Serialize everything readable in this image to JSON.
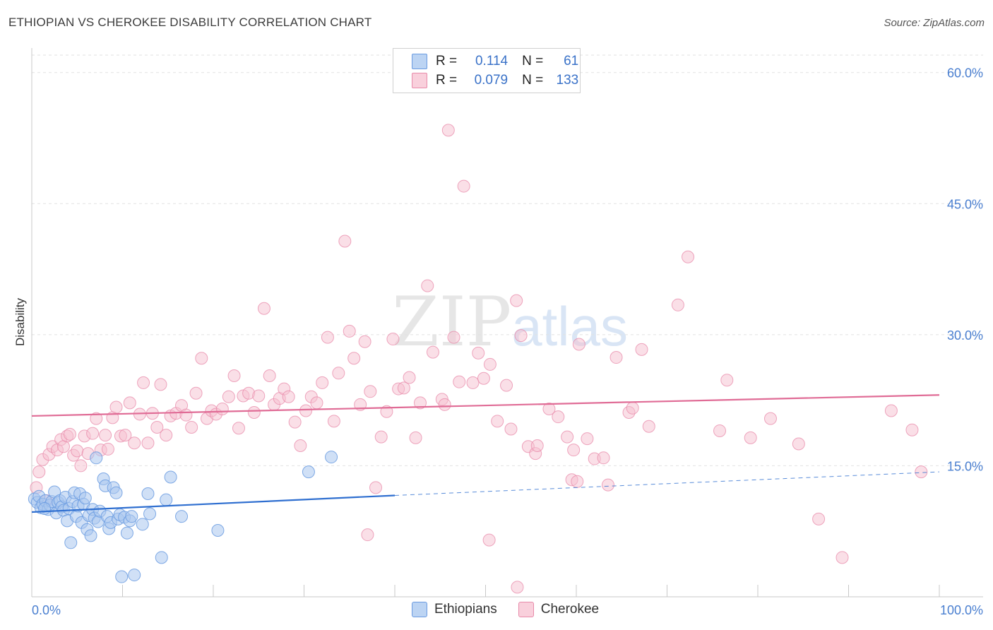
{
  "title": "ETHIOPIAN VS CHEROKEE DISABILITY CORRELATION CHART",
  "source": "Source: ZipAtlas.com",
  "watermark": {
    "zip": "ZIP",
    "atlas": "atlas"
  },
  "legend": {
    "rows": [
      {
        "r_label": "R =",
        "r_value": "0.114",
        "n_label": "N =",
        "n_value": "61"
      },
      {
        "r_label": "R =",
        "r_value": "0.079",
        "n_label": "N =",
        "n_value": "133"
      }
    ]
  },
  "bottom_legend": {
    "items": [
      "Ethiopians",
      "Cherokee"
    ]
  },
  "colors": {
    "ethiopians_fill": "#a9c7ef",
    "ethiopians_stroke": "#6a9be0",
    "ethiopians_line": "#2f6fd0",
    "cherokee_fill": "#f6bfd0",
    "cherokee_stroke": "#e88aaa",
    "cherokee_line": "#e06c96",
    "tick_text": "#4a7fd0",
    "grid": "#e2e2e2"
  },
  "chart_data": {
    "type": "scatter",
    "title": "ETHIOPIAN VS CHEROKEE DISABILITY CORRELATION CHART",
    "xlabel": "",
    "ylabel": "Disability",
    "xlim": [
      0,
      100
    ],
    "ylim": [
      0,
      62
    ],
    "x_tick_labels": [
      "0.0%",
      "100.0%"
    ],
    "y_ticks": [
      15,
      30,
      45,
      60
    ],
    "y_tick_labels": [
      "15.0%",
      "30.0%",
      "45.0%",
      "60.0%"
    ],
    "grid": "horizontal dashed",
    "series": [
      {
        "name": "Ethiopians",
        "r": 0.114,
        "n": 61,
        "trend": {
          "x0": 0,
          "y0": 9.7,
          "x1": 40,
          "y1": 11.6,
          "dashed_to_x": 100,
          "dashed_to_y": 14.3
        },
        "points": [
          [
            0.3,
            11.2
          ],
          [
            0.6,
            10.8
          ],
          [
            0.8,
            11.5
          ],
          [
            1.0,
            10.2
          ],
          [
            1.2,
            10.6
          ],
          [
            1.5,
            11.0
          ],
          [
            1.8,
            10.0
          ],
          [
            2.0,
            10.5
          ],
          [
            2.2,
            10.9
          ],
          [
            2.5,
            12.0
          ],
          [
            2.7,
            9.6
          ],
          [
            2.9,
            10.8
          ],
          [
            3.1,
            11.0
          ],
          [
            3.3,
            10.3
          ],
          [
            3.5,
            9.9
          ],
          [
            3.7,
            11.4
          ],
          [
            3.9,
            8.7
          ],
          [
            4.1,
            10.1
          ],
          [
            4.3,
            6.2
          ],
          [
            4.5,
            10.9
          ],
          [
            4.7,
            11.9
          ],
          [
            4.9,
            9.2
          ],
          [
            5.1,
            10.4
          ],
          [
            5.3,
            11.8
          ],
          [
            5.5,
            8.5
          ],
          [
            5.7,
            10.6
          ],
          [
            5.9,
            11.3
          ],
          [
            6.1,
            7.7
          ],
          [
            6.3,
            9.3
          ],
          [
            6.5,
            7.0
          ],
          [
            6.7,
            10.0
          ],
          [
            6.9,
            9.0
          ],
          [
            7.1,
            15.9
          ],
          [
            7.3,
            8.6
          ],
          [
            7.5,
            9.8
          ],
          [
            7.9,
            13.5
          ],
          [
            8.1,
            12.7
          ],
          [
            8.3,
            9.2
          ],
          [
            8.5,
            7.8
          ],
          [
            8.7,
            8.5
          ],
          [
            9.0,
            12.5
          ],
          [
            9.3,
            11.9
          ],
          [
            9.5,
            8.9
          ],
          [
            9.7,
            9.4
          ],
          [
            9.9,
            2.3
          ],
          [
            10.2,
            9.1
          ],
          [
            10.5,
            7.3
          ],
          [
            10.8,
            8.7
          ],
          [
            11.0,
            9.2
          ],
          [
            11.3,
            2.5
          ],
          [
            12.2,
            8.3
          ],
          [
            12.8,
            11.8
          ],
          [
            13.0,
            9.5
          ],
          [
            14.3,
            4.5
          ],
          [
            14.8,
            11.1
          ],
          [
            15.3,
            13.7
          ],
          [
            16.5,
            9.2
          ],
          [
            20.5,
            7.6
          ],
          [
            30.5,
            14.3
          ],
          [
            33.0,
            16.0
          ],
          [
            1.4,
            10.1
          ]
        ]
      },
      {
        "name": "Cherokee",
        "r": 0.079,
        "n": 133,
        "trend": {
          "x0": 0,
          "y0": 20.7,
          "x1": 100,
          "y1": 23.1
        },
        "points": [
          [
            0.5,
            12.5
          ],
          [
            0.8,
            14.3
          ],
          [
            1.2,
            15.7
          ],
          [
            1.6,
            11.0
          ],
          [
            1.9,
            16.3
          ],
          [
            2.3,
            17.2
          ],
          [
            2.8,
            16.8
          ],
          [
            3.2,
            18.0
          ],
          [
            3.5,
            17.2
          ],
          [
            3.9,
            18.4
          ],
          [
            4.2,
            18.6
          ],
          [
            4.6,
            16.2
          ],
          [
            5.0,
            16.7
          ],
          [
            5.4,
            15.0
          ],
          [
            5.8,
            18.4
          ],
          [
            6.2,
            16.4
          ],
          [
            6.7,
            18.7
          ],
          [
            7.1,
            20.4
          ],
          [
            7.6,
            16.8
          ],
          [
            8.1,
            18.5
          ],
          [
            8.4,
            16.9
          ],
          [
            8.9,
            20.5
          ],
          [
            9.3,
            21.7
          ],
          [
            9.8,
            18.4
          ],
          [
            10.3,
            18.5
          ],
          [
            10.8,
            22.2
          ],
          [
            11.3,
            17.6
          ],
          [
            11.9,
            20.9
          ],
          [
            12.3,
            24.5
          ],
          [
            12.8,
            17.6
          ],
          [
            13.3,
            21.0
          ],
          [
            13.8,
            19.4
          ],
          [
            14.2,
            24.3
          ],
          [
            14.8,
            18.5
          ],
          [
            15.3,
            20.7
          ],
          [
            15.9,
            21.0
          ],
          [
            16.5,
            21.9
          ],
          [
            17.0,
            20.8
          ],
          [
            17.6,
            19.4
          ],
          [
            18.1,
            23.3
          ],
          [
            18.7,
            27.3
          ],
          [
            19.3,
            20.4
          ],
          [
            19.8,
            21.3
          ],
          [
            20.3,
            20.9
          ],
          [
            21.0,
            21.5
          ],
          [
            21.7,
            22.9
          ],
          [
            22.3,
            25.3
          ],
          [
            22.8,
            19.3
          ],
          [
            23.3,
            23.0
          ],
          [
            23.9,
            23.3
          ],
          [
            24.5,
            21.1
          ],
          [
            25.0,
            23.0
          ],
          [
            25.6,
            33.0
          ],
          [
            26.2,
            25.3
          ],
          [
            26.7,
            22.0
          ],
          [
            27.3,
            22.7
          ],
          [
            27.8,
            23.8
          ],
          [
            28.3,
            22.9
          ],
          [
            29.0,
            20.0
          ],
          [
            29.6,
            17.3
          ],
          [
            30.2,
            21.3
          ],
          [
            30.8,
            22.9
          ],
          [
            31.4,
            22.2
          ],
          [
            32.0,
            24.5
          ],
          [
            32.6,
            29.7
          ],
          [
            33.3,
            20.1
          ],
          [
            33.8,
            25.6
          ],
          [
            34.5,
            40.7
          ],
          [
            35.0,
            30.4
          ],
          [
            35.5,
            27.3
          ],
          [
            36.2,
            22.0
          ],
          [
            36.7,
            29.2
          ],
          [
            37.3,
            23.5
          ],
          [
            37.9,
            12.5
          ],
          [
            38.5,
            18.3
          ],
          [
            39.1,
            21.2
          ],
          [
            39.8,
            29.5
          ],
          [
            40.4,
            23.8
          ],
          [
            41.0,
            23.9
          ],
          [
            41.6,
            25.1
          ],
          [
            42.3,
            18.2
          ],
          [
            42.8,
            22.2
          ],
          [
            43.6,
            35.6
          ],
          [
            44.2,
            28.0
          ],
          [
            45.2,
            22.6
          ],
          [
            45.9,
            53.4
          ],
          [
            46.5,
            29.7
          ],
          [
            47.1,
            24.6
          ],
          [
            47.6,
            47.0
          ],
          [
            48.6,
            24.5
          ],
          [
            49.2,
            27.9
          ],
          [
            49.8,
            25.0
          ],
          [
            50.5,
            26.6
          ],
          [
            51.3,
            20.1
          ],
          [
            52.3,
            24.2
          ],
          [
            52.8,
            19.2
          ],
          [
            53.4,
            33.9
          ],
          [
            53.9,
            29.9
          ],
          [
            54.7,
            17.2
          ],
          [
            55.5,
            16.4
          ],
          [
            57.0,
            21.5
          ],
          [
            58.0,
            20.6
          ],
          [
            59.0,
            18.3
          ],
          [
            59.5,
            13.4
          ],
          [
            60.3,
            28.9
          ],
          [
            61.2,
            18.1
          ],
          [
            62.0,
            15.8
          ],
          [
            63.5,
            12.8
          ],
          [
            64.4,
            27.4
          ],
          [
            65.8,
            21.1
          ],
          [
            66.2,
            21.6
          ],
          [
            67.2,
            28.3
          ],
          [
            68.0,
            19.5
          ],
          [
            71.2,
            33.4
          ],
          [
            72.3,
            38.9
          ],
          [
            75.8,
            19.0
          ],
          [
            76.6,
            24.8
          ],
          [
            79.2,
            18.2
          ],
          [
            81.4,
            20.4
          ],
          [
            84.5,
            17.5
          ],
          [
            86.7,
            8.9
          ],
          [
            89.3,
            4.5
          ],
          [
            94.7,
            21.3
          ],
          [
            97.0,
            19.1
          ],
          [
            98.0,
            14.3
          ],
          [
            37.0,
            7.1
          ],
          [
            50.4,
            6.5
          ],
          [
            53.5,
            1.1
          ],
          [
            60.1,
            13.2
          ],
          [
            63.0,
            15.9
          ],
          [
            45.5,
            22.0
          ],
          [
            55.7,
            17.3
          ],
          [
            59.7,
            16.8
          ]
        ]
      }
    ]
  }
}
